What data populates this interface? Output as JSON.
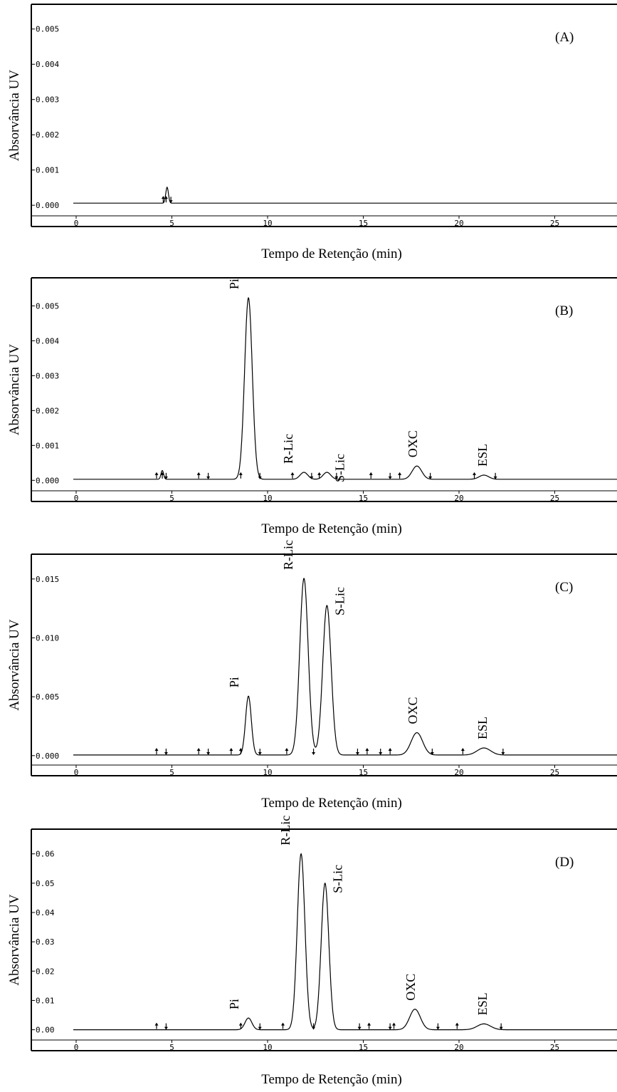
{
  "chart_data": [
    {
      "type": "line",
      "panel_label": "(A)",
      "xlabel": "Tempo de Retenção (min)",
      "ylabel": "Absorvância UV",
      "xlim": [
        0,
        28
      ],
      "ylim": [
        -0.0003,
        0.0055
      ],
      "x_ticks": [
        0,
        5,
        10,
        15,
        20,
        25
      ],
      "y_ticks": [
        {
          "v": 0.0,
          "label": "0.000"
        },
        {
          "v": 0.001,
          "label": "0.001"
        },
        {
          "v": 0.002,
          "label": "0.002"
        },
        {
          "v": 0.003,
          "label": "0.003"
        },
        {
          "v": 0.004,
          "label": "0.004"
        },
        {
          "v": 0.005,
          "label": "0.005"
        }
      ],
      "baseline": 6e-05,
      "peaks": [
        {
          "t": 4.75,
          "h": 0.00045,
          "w": 0.07,
          "label": ""
        }
      ],
      "markers": [
        {
          "t": 4.55,
          "dir": "up"
        },
        {
          "t": 4.7,
          "dir": "up"
        },
        {
          "t": 4.95,
          "dir": "down"
        }
      ]
    },
    {
      "type": "line",
      "panel_label": "(B)",
      "xlabel": "Tempo de Retenção (min)",
      "ylabel": "Absorvância UV",
      "xlim": [
        0,
        28
      ],
      "ylim": [
        -0.0003,
        0.0056
      ],
      "x_ticks": [
        0,
        5,
        10,
        15,
        20,
        25
      ],
      "y_ticks": [
        {
          "v": 0.0,
          "label": "0.000"
        },
        {
          "v": 0.001,
          "label": "0.001"
        },
        {
          "v": 0.002,
          "label": "0.002"
        },
        {
          "v": 0.003,
          "label": "0.003"
        },
        {
          "v": 0.004,
          "label": "0.004"
        },
        {
          "v": 0.005,
          "label": "0.005"
        }
      ],
      "baseline": 3e-05,
      "peaks": [
        {
          "t": 4.5,
          "h": 0.00025,
          "w": 0.07,
          "label": ""
        },
        {
          "t": 9.0,
          "h": 0.0052,
          "w": 0.2,
          "label": "Pi"
        },
        {
          "t": 11.9,
          "h": 0.0002,
          "w": 0.2,
          "label": "R-Lic"
        },
        {
          "t": 13.1,
          "h": 0.0002,
          "w": 0.2,
          "label": "S-Lic"
        },
        {
          "t": 17.8,
          "h": 0.00038,
          "w": 0.25,
          "label": "OXC"
        },
        {
          "t": 21.3,
          "h": 0.00012,
          "w": 0.25,
          "label": "ESL"
        }
      ],
      "markers": [
        {
          "t": 4.2,
          "dir": "up"
        },
        {
          "t": 4.5,
          "dir": "up"
        },
        {
          "t": 4.7,
          "dir": "down"
        },
        {
          "t": 6.4,
          "dir": "up"
        },
        {
          "t": 6.9,
          "dir": "down"
        },
        {
          "t": 8.6,
          "dir": "up"
        },
        {
          "t": 9.6,
          "dir": "down"
        },
        {
          "t": 11.3,
          "dir": "up"
        },
        {
          "t": 12.3,
          "dir": "down"
        },
        {
          "t": 12.7,
          "dir": "up"
        },
        {
          "t": 13.6,
          "dir": "down"
        },
        {
          "t": 15.4,
          "dir": "up"
        },
        {
          "t": 16.4,
          "dir": "down"
        },
        {
          "t": 16.9,
          "dir": "up"
        },
        {
          "t": 18.5,
          "dir": "down"
        },
        {
          "t": 20.8,
          "dir": "up"
        },
        {
          "t": 21.9,
          "dir": "down"
        }
      ]
    },
    {
      "type": "line",
      "panel_label": "(C)",
      "xlabel": "Tempo de Retenção (min)",
      "ylabel": "Absorvância UV",
      "xlim": [
        0,
        28
      ],
      "ylim": [
        -0.0008,
        0.0165
      ],
      "x_ticks": [
        0,
        5,
        10,
        15,
        20,
        25
      ],
      "y_ticks": [
        {
          "v": 0.0,
          "label": "0.000"
        },
        {
          "v": 0.005,
          "label": "0.005"
        },
        {
          "v": 0.01,
          "label": "0.010"
        },
        {
          "v": 0.015,
          "label": "0.015"
        }
      ],
      "baseline": 5e-05,
      "peaks": [
        {
          "t": 9.0,
          "h": 0.005,
          "w": 0.15,
          "label": "Pi"
        },
        {
          "t": 11.9,
          "h": 0.015,
          "w": 0.22,
          "label": "R-Lic"
        },
        {
          "t": 13.1,
          "h": 0.0127,
          "w": 0.22,
          "label": "S-Lic"
        },
        {
          "t": 17.8,
          "h": 0.0019,
          "w": 0.3,
          "label": "OXC"
        },
        {
          "t": 21.3,
          "h": 0.0006,
          "w": 0.35,
          "label": "ESL"
        }
      ],
      "markers": [
        {
          "t": 4.2,
          "dir": "up"
        },
        {
          "t": 4.7,
          "dir": "down"
        },
        {
          "t": 6.4,
          "dir": "up"
        },
        {
          "t": 6.9,
          "dir": "down"
        },
        {
          "t": 8.1,
          "dir": "up"
        },
        {
          "t": 8.6,
          "dir": "up"
        },
        {
          "t": 9.6,
          "dir": "down"
        },
        {
          "t": 11.0,
          "dir": "up"
        },
        {
          "t": 12.4,
          "dir": "down"
        },
        {
          "t": 14.7,
          "dir": "down"
        },
        {
          "t": 15.2,
          "dir": "up"
        },
        {
          "t": 15.9,
          "dir": "down"
        },
        {
          "t": 16.4,
          "dir": "up"
        },
        {
          "t": 18.6,
          "dir": "down"
        },
        {
          "t": 20.2,
          "dir": "up"
        },
        {
          "t": 22.3,
          "dir": "down"
        }
      ]
    },
    {
      "type": "line",
      "panel_label": "(D)",
      "xlabel": "Tempo de Retenção (min)",
      "ylabel": "Absorvância UV",
      "xlim": [
        0,
        28
      ],
      "ylim": [
        -0.0035,
        0.066
      ],
      "x_ticks": [
        0,
        5,
        10,
        15,
        20,
        25
      ],
      "y_ticks": [
        {
          "v": 0.0,
          "label": "0.00"
        },
        {
          "v": 0.01,
          "label": "0.01"
        },
        {
          "v": 0.02,
          "label": "0.02"
        },
        {
          "v": 0.03,
          "label": "0.03"
        },
        {
          "v": 0.04,
          "label": "0.04"
        },
        {
          "v": 0.05,
          "label": "0.05"
        },
        {
          "v": 0.06,
          "label": "0.06"
        }
      ],
      "baseline": 0.0,
      "peaks": [
        {
          "t": 9.0,
          "h": 0.004,
          "w": 0.18,
          "label": "Pi"
        },
        {
          "t": 11.75,
          "h": 0.06,
          "w": 0.2,
          "label": "R-Lic"
        },
        {
          "t": 13.0,
          "h": 0.05,
          "w": 0.2,
          "label": "S-Lic"
        },
        {
          "t": 17.7,
          "h": 0.007,
          "w": 0.28,
          "label": "OXC"
        },
        {
          "t": 21.3,
          "h": 0.002,
          "w": 0.35,
          "label": "ESL"
        }
      ],
      "markers": [
        {
          "t": 4.2,
          "dir": "up"
        },
        {
          "t": 4.7,
          "dir": "down"
        },
        {
          "t": 8.6,
          "dir": "up"
        },
        {
          "t": 9.6,
          "dir": "down"
        },
        {
          "t": 10.8,
          "dir": "up"
        },
        {
          "t": 12.4,
          "dir": "down"
        },
        {
          "t": 14.8,
          "dir": "down"
        },
        {
          "t": 15.3,
          "dir": "up"
        },
        {
          "t": 16.4,
          "dir": "down"
        },
        {
          "t": 16.6,
          "dir": "up"
        },
        {
          "t": 18.9,
          "dir": "down"
        },
        {
          "t": 19.9,
          "dir": "up"
        },
        {
          "t": 22.2,
          "dir": "down"
        }
      ]
    }
  ]
}
